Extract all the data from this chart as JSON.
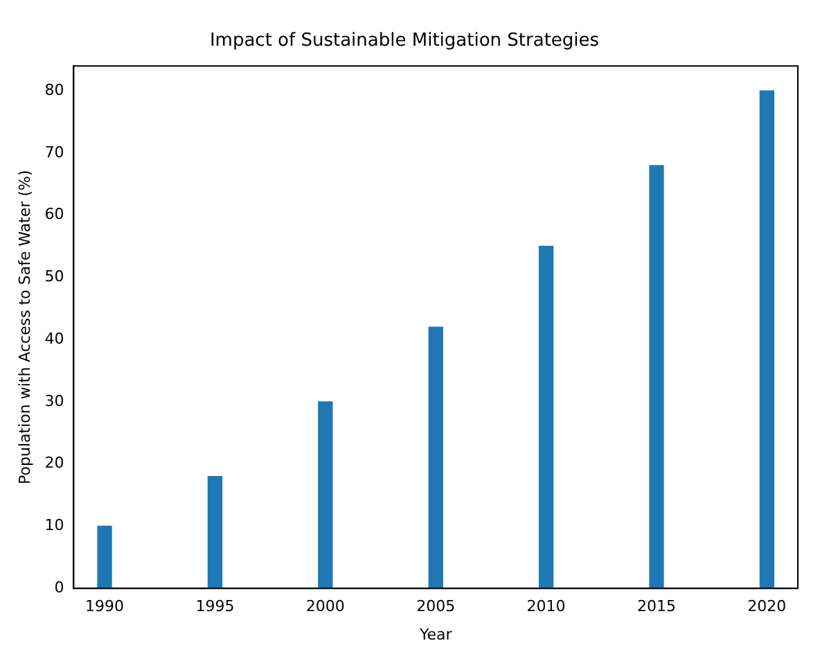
{
  "chart_data": {
    "type": "bar",
    "title": "Impact of Sustainable Mitigation Strategies",
    "xlabel": "Year",
    "ylabel": "Population with Access to Safe Water (%)",
    "x": [
      1990,
      1995,
      2000,
      2005,
      2010,
      2015,
      2020
    ],
    "values": [
      10,
      18,
      30,
      42,
      55,
      68,
      80
    ],
    "color": "#1f77b4",
    "xlim": [
      1988.6,
      2021.4
    ],
    "xticks": [
      1990,
      1995,
      2000,
      2005,
      2010,
      2015,
      2020
    ],
    "ylim": [
      0,
      84
    ],
    "yticks": [
      0,
      10,
      20,
      30,
      40,
      50,
      60,
      70,
      80
    ],
    "grid": false,
    "legend": false
  }
}
